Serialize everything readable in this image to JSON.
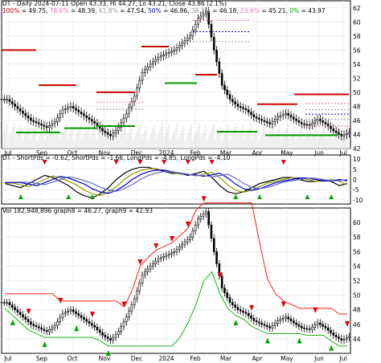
{
  "panels": {
    "price": {
      "title": "DT - Daily 2024-07-11 Open 43.33, Hi 44.27, Lo 43.21, Close 43.86 (2.1%)",
      "fib_levels": [
        {
          "label": "100%",
          "value": "49.75",
          "color": "#cc0000"
        },
        {
          "label": "78.6%",
          "value": "48.39",
          "color": "#ff69b4"
        },
        {
          "label": "61.8%",
          "value": "47.54",
          "color": "#999999"
        },
        {
          "label": "50%",
          "value": "46.86",
          "color": "#0000cc"
        },
        {
          "label": "38.2%",
          "value": "46.18",
          "color": "#999999"
        },
        {
          "label": "23.6%",
          "value": "45.21",
          "color": "#ff69b4"
        },
        {
          "label": "0%",
          "value": "43.97",
          "color": "#009900"
        }
      ]
    },
    "indicator": {
      "title": "DT - ShortPds = -0.62, ShortPds = -1.66, LongPds = -4.85, LongPds = -4.10"
    },
    "volume": {
      "title": "Vol 182,948,896 graph8 = 46.27, graph9 = 42.93"
    }
  },
  "chart_data": [
    {
      "type": "candlestick",
      "panel": "price",
      "ylim": [
        42,
        63
      ],
      "y_ticks": [
        "42",
        "44",
        "46",
        "48",
        "50",
        "52",
        "54",
        "56",
        "58",
        "60",
        "62"
      ],
      "x_ticks": [
        "Jul",
        "Sep",
        "Oct",
        "Nov",
        "Dec",
        "2024",
        "Feb",
        "Mar",
        "Apr",
        "May",
        "Jun",
        "Jul"
      ],
      "close_series": [
        49,
        48,
        47,
        46,
        45.5,
        45,
        45.8,
        47.5,
        48,
        47.2,
        46.4,
        45.6,
        44.5,
        43.8,
        45,
        47,
        49.5,
        52.8,
        54,
        55,
        55.5,
        56,
        57,
        58,
        60.5,
        61.5,
        56,
        51,
        49,
        48,
        47.5,
        46.5,
        46,
        45.5,
        46.5,
        47,
        46.2,
        45.5,
        45.3,
        46.2,
        45.5,
        44.5,
        43.8,
        44.3
      ]
    },
    {
      "type": "line",
      "panel": "indicator",
      "ylim": [
        -12,
        12
      ],
      "y_ticks": [
        "10",
        "5",
        "0",
        "-5",
        "-10"
      ],
      "series": [
        {
          "name": "ShortPds",
          "values": [
            -0.62
          ],
          "color": "#000000"
        },
        {
          "name": "ShortPds",
          "values": [
            -1.66
          ],
          "color": "#999900"
        },
        {
          "name": "LongPds",
          "values": [
            -4.85
          ],
          "color": "#0000cc"
        },
        {
          "name": "LongPds",
          "values": [
            -4.1
          ],
          "color": "#6666cc"
        }
      ],
      "smoothed": [
        -2,
        -3,
        -4,
        -2,
        0,
        2,
        1,
        -1,
        -3,
        -6,
        -8,
        -9,
        -7,
        -4,
        0,
        3,
        5,
        6,
        6,
        5,
        4,
        3,
        3,
        2,
        3,
        4,
        1,
        -3,
        -6,
        -7,
        -6,
        -4,
        -2,
        -1,
        0,
        1,
        1,
        0,
        -1,
        -1,
        0,
        -1,
        -3,
        -2
      ]
    },
    {
      "type": "candlestick",
      "panel": "volume",
      "ylim": [
        42,
        62
      ],
      "y_ticks": [
        "44",
        "46",
        "48",
        "50",
        "52",
        "54",
        "56",
        "58",
        "60"
      ],
      "x_ticks": [
        "Jul",
        "Sep",
        "Oct",
        "Nov",
        "Dec",
        "2024",
        "Feb",
        "Mar",
        "Apr",
        "May",
        "Jun",
        "Jul"
      ],
      "series": [
        {
          "name": "graph8",
          "value": 46.27,
          "color": "#ff0000"
        },
        {
          "name": "graph9",
          "value": 42.93,
          "color": "#00aa00"
        }
      ]
    }
  ]
}
